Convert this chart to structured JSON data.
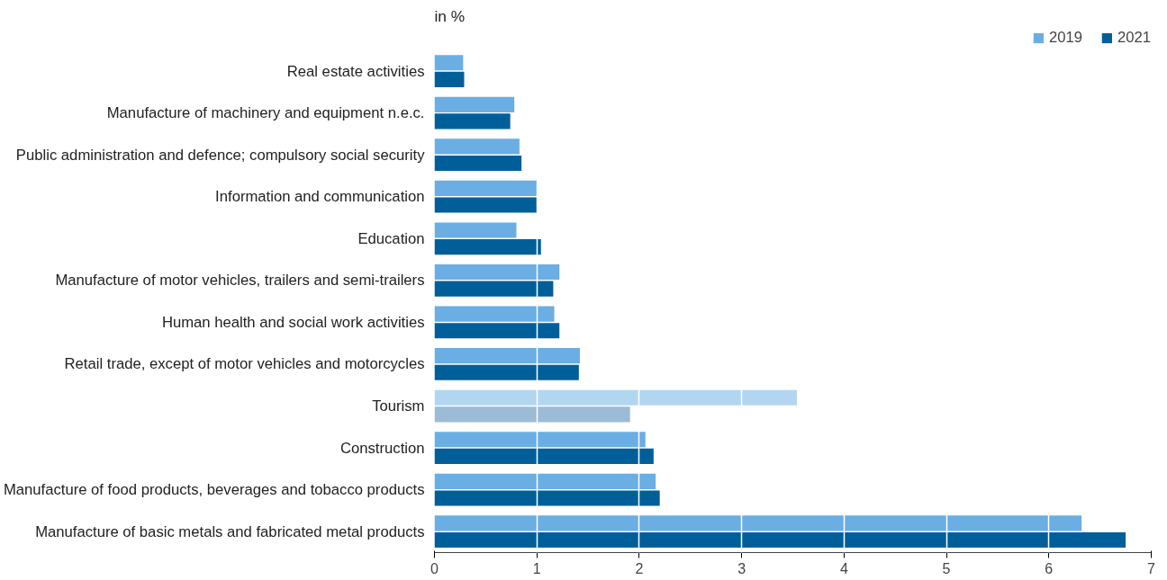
{
  "chart_data": {
    "type": "bar",
    "orientation": "horizontal",
    "annotations": [
      "in %"
    ],
    "categories": [
      "Real estate activities",
      "Manufacture of machinery and equipment n.e.c.",
      "Public administration and defence; compulsory social security",
      "Information and communication",
      "Education",
      "Manufacture of motor vehicles, trailers and semi-trailers",
      "Human health and social work activities",
      "Retail trade, except of motor vehicles and motorcycles",
      "Tourism",
      "Construction",
      "Manufacture of food products, beverages and tobacco products",
      "Manufacture of basic metals and fabricated metal products"
    ],
    "series": [
      {
        "name": "2019",
        "color": "#6aaee3",
        "colors": [
          "#6aaee3",
          "#6aaee3",
          "#6aaee3",
          "#6aaee3",
          "#6aaee3",
          "#6aaee3",
          "#6aaee3",
          "#6aaee3",
          "#b3d6f0",
          "#6aaee3",
          "#6aaee3",
          "#6aaee3"
        ],
        "values": [
          0.28,
          0.78,
          0.83,
          1.0,
          0.8,
          1.22,
          1.17,
          1.42,
          3.54,
          2.06,
          2.16,
          6.32
        ]
      },
      {
        "name": "2021",
        "color": "#005f99",
        "colors": [
          "#005f99",
          "#005f99",
          "#005f99",
          "#005f99",
          "#005f99",
          "#005f99",
          "#005f99",
          "#005f99",
          "#9bbcd6",
          "#005f99",
          "#005f99",
          "#005f99"
        ],
        "values": [
          0.29,
          0.74,
          0.85,
          1.0,
          1.04,
          1.16,
          1.22,
          1.41,
          1.91,
          2.14,
          2.2,
          6.75
        ]
      }
    ],
    "xlim": [
      0,
      7
    ],
    "xticks": [
      0,
      1,
      2,
      3,
      4,
      5,
      6,
      7
    ],
    "grid": "x",
    "legend": "top right"
  }
}
